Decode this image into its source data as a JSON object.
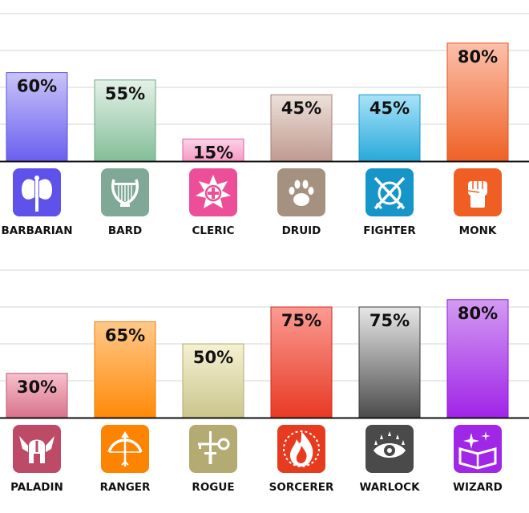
{
  "chart_data": [
    {
      "type": "bar",
      "categories": [
        "BARBARIAN",
        "BARD",
        "CLERIC",
        "DRUID",
        "FIGHTER",
        "MONK"
      ],
      "values": [
        60,
        55,
        15,
        45,
        45,
        80
      ],
      "data_labels": [
        "60%",
        "55%",
        "15%",
        "45%",
        "45%",
        "80%"
      ],
      "ylim": [
        0,
        100
      ],
      "grid": true,
      "icons": [
        "battle-axe-icon",
        "lyre-icon",
        "holy-symbol-icon",
        "paw-print-icon",
        "crossed-swords-shield-icon",
        "raised-fist-icon"
      ],
      "colors": [
        {
          "top": "#c9c4f7",
          "bottom": "#6a5ff0",
          "border": "#5a50e0",
          "icon": "#5e52ea"
        },
        {
          "top": "#e4f1e8",
          "bottom": "#83be98",
          "border": "#6aa883",
          "icon": "#7fa996"
        },
        {
          "top": "#fbd3e6",
          "bottom": "#f59ac4",
          "border": "#e0609e",
          "icon": "#ec4f97"
        },
        {
          "top": "#ece1da",
          "bottom": "#c09a90",
          "border": "#a88276",
          "icon": "#a5917f"
        },
        {
          "top": "#a8e3f8",
          "bottom": "#28a9db",
          "border": "#1898cc",
          "icon": "#1695c8"
        },
        {
          "top": "#fbc0aa",
          "bottom": "#f06126",
          "border": "#e05020",
          "icon": "#ef5e22"
        }
      ]
    },
    {
      "type": "bar",
      "categories": [
        "PALADIN",
        "RANGER",
        "ROGUE",
        "SORCERER",
        "WARLOCK",
        "WIZARD"
      ],
      "values": [
        30,
        65,
        50,
        75,
        75,
        80
      ],
      "data_labels": [
        "30%",
        "65%",
        "50%",
        "75%",
        "75%",
        "80%"
      ],
      "ylim": [
        0,
        100
      ],
      "grid": true,
      "icons": [
        "winged-helmet-icon",
        "bow-and-arrow-icon",
        "dagger-and-key-icon",
        "flame-icon",
        "eye-icon",
        "spellbook-icon"
      ],
      "colors": [
        {
          "top": "#f7c0cc",
          "bottom": "#d8738c",
          "border": "#c25774",
          "icon": "#bd4a66"
        },
        {
          "top": "#ffc98a",
          "bottom": "#ff8a08",
          "border": "#ee7d00",
          "icon": "#fd8400"
        },
        {
          "top": "#f5f1d2",
          "bottom": "#cbc68c",
          "border": "#b0ab6e",
          "icon": "#b4ab73"
        },
        {
          "top": "#fa9b93",
          "bottom": "#e83a24",
          "border": "#d02a1a",
          "icon": "#e63b1f"
        },
        {
          "top": "#e7e7e7",
          "bottom": "#4b4b4b",
          "border": "#3a3a3a",
          "icon": "#4a4a4a"
        },
        {
          "top": "#d39bf2",
          "bottom": "#a024e8",
          "border": "#9018d8",
          "icon": "#a127e6"
        }
      ]
    }
  ]
}
